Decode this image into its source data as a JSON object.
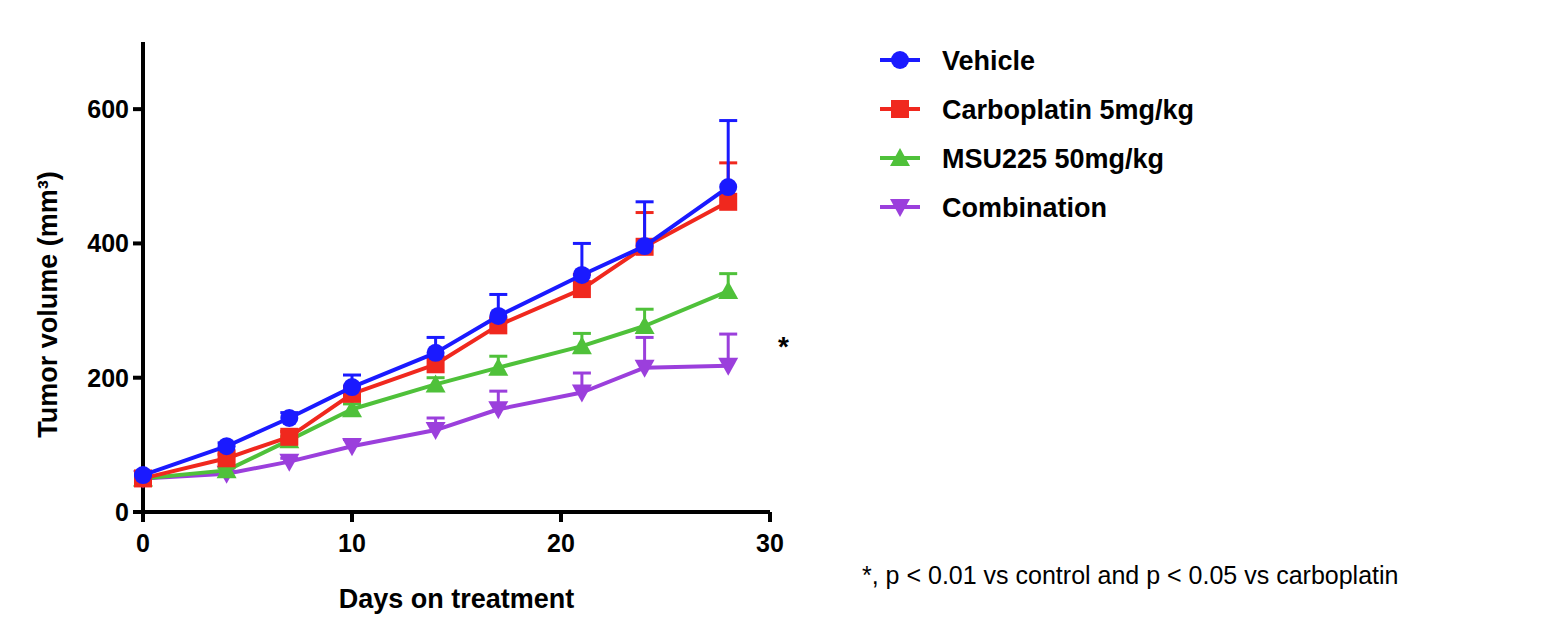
{
  "chart_data": {
    "type": "line",
    "x_label": "Days on treatment",
    "y_label": "Tumor volume (mm³)",
    "x": [
      0,
      4,
      7,
      10,
      14,
      17,
      21,
      24,
      28
    ],
    "xlim": [
      0,
      30
    ],
    "xticks": [
      0,
      10,
      20,
      30
    ],
    "ylim": [
      0,
      700
    ],
    "yticks": [
      0,
      200,
      400,
      600
    ],
    "legend": "right",
    "series": [
      {
        "name": "Vehicle",
        "color": "#1a1aff",
        "marker": "circle",
        "values": [
          55,
          98,
          140,
          186,
          237,
          292,
          353,
          396,
          484
        ],
        "errors": [
          0,
          5,
          8,
          18,
          23,
          32,
          47,
          66,
          99
        ]
      },
      {
        "name": "Carboplatin 5mg/kg",
        "color": "#f0281e",
        "marker": "square",
        "values": [
          50,
          80,
          112,
          176,
          220,
          278,
          332,
          395,
          462
        ],
        "errors": [
          0,
          6,
          8,
          8,
          10,
          10,
          22,
          51,
          58
        ]
      },
      {
        "name": "MSU225 50mg/kg",
        "color": "#4fc13a",
        "marker": "triangle-up",
        "values": [
          50,
          62,
          107,
          153,
          190,
          215,
          247,
          277,
          329
        ],
        "errors": [
          0,
          4,
          5,
          8,
          10,
          17,
          19,
          25,
          26
        ]
      },
      {
        "name": "Combination",
        "color": "#9b3fdc",
        "marker": "triangle-down",
        "values": [
          50,
          57,
          75,
          98,
          122,
          153,
          178,
          215,
          218
        ],
        "errors": [
          0,
          3,
          5,
          10,
          18,
          27,
          29,
          45,
          47
        ]
      }
    ],
    "annotations": [
      "*",
      "*, p < 0.01 vs control and p < 0.05 vs carboplatin"
    ]
  }
}
